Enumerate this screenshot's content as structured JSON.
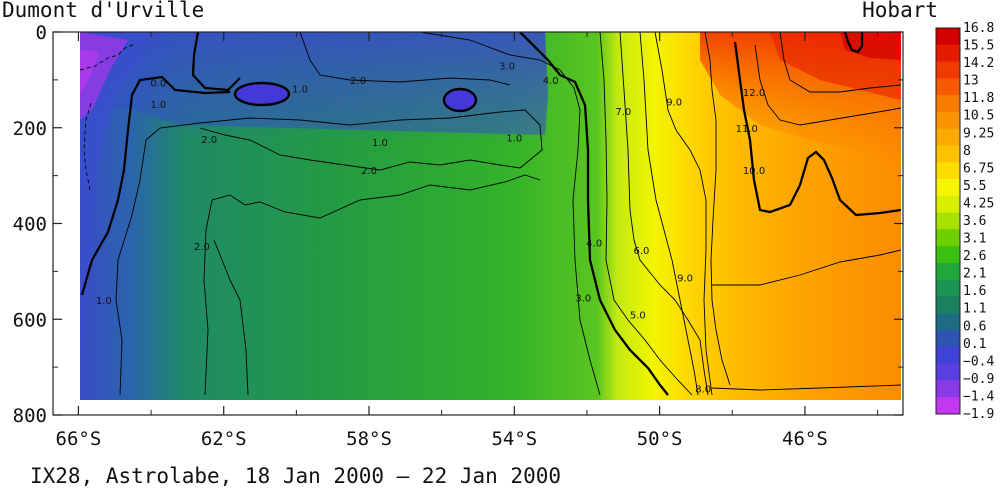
{
  "labels": {
    "left_station": "Dumont d'Urville",
    "right_station": "Hobart",
    "caption": "IX28, Astrolabe, 18 Jan 2000 – 22 Jan 2000"
  },
  "chart_data": {
    "type": "heatmap",
    "title": "",
    "xlabel": "",
    "ylabel": "",
    "x_ticks": [
      "66°S",
      "62°S",
      "58°S",
      "54°S",
      "50°S",
      "46°S"
    ],
    "x_tick_values": [
      -66,
      -62,
      -58,
      -54,
      -50,
      -46
    ],
    "xlim": [
      -66.7,
      -43.3
    ],
    "y_ticks": [
      "0",
      "200",
      "400",
      "600",
      "800"
    ],
    "y_tick_values": [
      0,
      200,
      400,
      600,
      800
    ],
    "ylim": [
      0,
      800
    ],
    "y_inverted": true,
    "colorbar": {
      "labels": [
        "16.8",
        "15.5",
        "14.2",
        "13",
        "11.8",
        "10.5",
        "9.25",
        "8",
        "6.75",
        "5.5",
        "4.25",
        "3.6",
        "3.1",
        "2.6",
        "2.1",
        "1.6",
        "1.1",
        "0.6",
        "0.1",
        "−0.4",
        "−0.9",
        "−1.4",
        "−1.9"
      ],
      "colors": [
        "#d40000",
        "#e41b00",
        "#f03a00",
        "#f55a00",
        "#f87a00",
        "#fb9300",
        "#fdaa00",
        "#ffc200",
        "#ffdc00",
        "#f6f500",
        "#d8f000",
        "#a8e100",
        "#6fd000",
        "#3bbf10",
        "#22a83a",
        "#1a9450",
        "#1a8060",
        "#1e6c84",
        "#2d55b0",
        "#3f42d6",
        "#5a3ee0",
        "#8a3ae6",
        "#c238ef"
      ]
    },
    "contour_labels": [
      {
        "text": "0.0",
        "lat": -63.8,
        "depth": 105
      },
      {
        "text": "1.0",
        "lat": -63.8,
        "depth": 150
      },
      {
        "text": "1.0",
        "lat": -65.3,
        "depth": 560
      },
      {
        "text": "2.0",
        "lat": -62.4,
        "depth": 223
      },
      {
        "text": "2.0",
        "lat": -62.6,
        "depth": 447
      },
      {
        "text": "1.0",
        "lat": -59.9,
        "depth": 118
      },
      {
        "text": "2.0",
        "lat": -58.3,
        "depth": 100
      },
      {
        "text": "1.0",
        "lat": -57.7,
        "depth": 230
      },
      {
        "text": "2.0",
        "lat": -58.0,
        "depth": 288
      },
      {
        "text": "3.0",
        "lat": -54.2,
        "depth": 70
      },
      {
        "text": "4.0",
        "lat": -53.0,
        "depth": 100
      },
      {
        "text": "1.0",
        "lat": -54.0,
        "depth": 220
      },
      {
        "text": "7.0",
        "lat": -51.0,
        "depth": 165
      },
      {
        "text": "9.0",
        "lat": -49.6,
        "depth": 145
      },
      {
        "text": "4.0",
        "lat": -51.8,
        "depth": 440
      },
      {
        "text": "6.0",
        "lat": -50.5,
        "depth": 455
      },
      {
        "text": "3.0",
        "lat": -52.1,
        "depth": 555
      },
      {
        "text": "5.0",
        "lat": -50.6,
        "depth": 590
      },
      {
        "text": "9.0",
        "lat": -49.3,
        "depth": 513
      },
      {
        "text": "8.0",
        "lat": -48.8,
        "depth": 745
      },
      {
        "text": "12.0",
        "lat": -47.4,
        "depth": 125
      },
      {
        "text": "11.0",
        "lat": -47.6,
        "depth": 200
      },
      {
        "text": "10.0",
        "lat": -47.4,
        "depth": 288
      }
    ]
  }
}
